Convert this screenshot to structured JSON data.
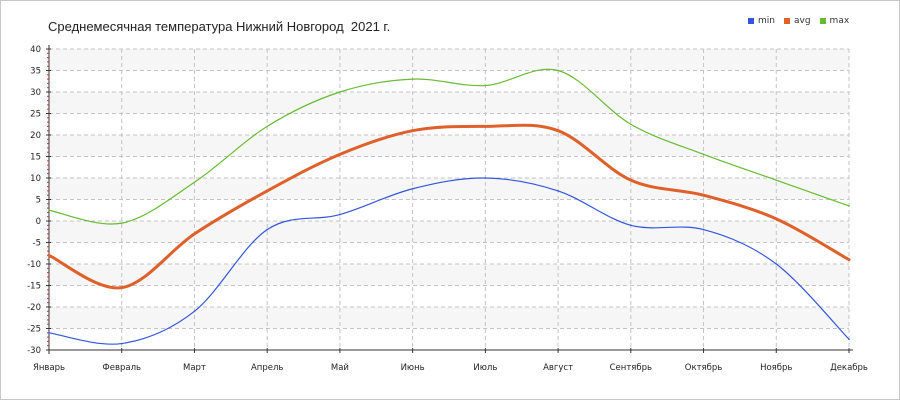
{
  "chart_data": {
    "type": "line",
    "title": "Среднемесячная температура Нижний Новгород  2021 г.",
    "categories": [
      "Январь",
      "Февраль",
      "Март",
      "Апрель",
      "Май",
      "Июнь",
      "Июль",
      "Август",
      "Сентябрь",
      "Октябрь",
      "Ноябрь",
      "Декабрь"
    ],
    "series": [
      {
        "name": "min",
        "color": "#3355dd",
        "values": [
          -26,
          -28.5,
          -21,
          -2,
          1.5,
          7.5,
          10,
          7,
          -1,
          -2,
          -10,
          -27.5
        ]
      },
      {
        "name": "avg",
        "color": "#e0602a",
        "values": [
          -8,
          -15.5,
          -3,
          7,
          15.5,
          21,
          22,
          21,
          9.5,
          6,
          0.5,
          -9
        ]
      },
      {
        "name": "max",
        "color": "#66bb33",
        "values": [
          2.5,
          -0.5,
          9,
          22,
          30,
          33,
          31.5,
          35,
          22.5,
          15.5,
          9.5,
          3.5
        ]
      }
    ],
    "ylim": [
      -30,
      40
    ],
    "yticks": [
      "40",
      "35",
      "30",
      "25",
      "20",
      "15",
      "10",
      "5",
      "0",
      "-5",
      "-10",
      "-15",
      "-20",
      "-25",
      "-30"
    ],
    "xlabel": "",
    "ylabel": "",
    "grid": true,
    "legend_position": "top-right"
  }
}
